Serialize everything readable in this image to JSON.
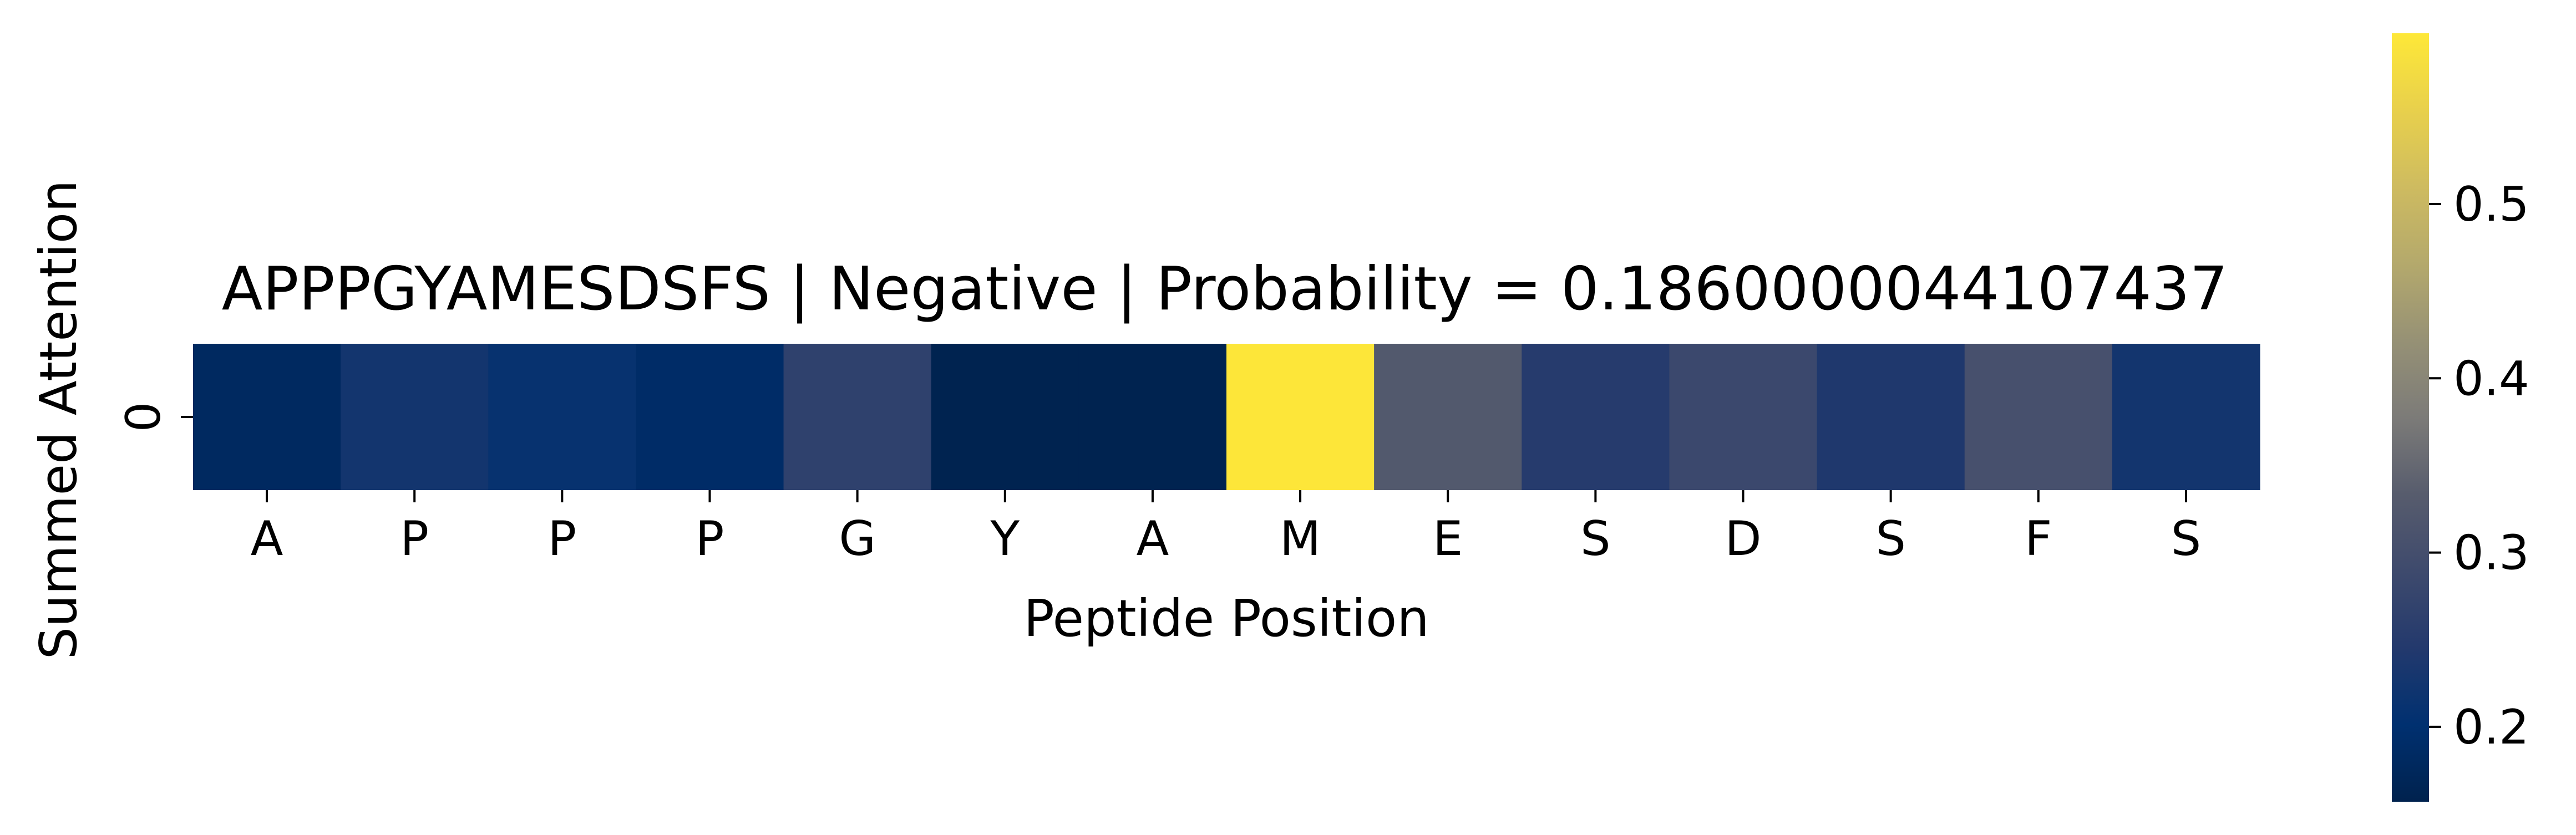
{
  "chart_data": {
    "type": "heatmap",
    "title": "APPPGYAMESDSFS | Negative | Probability = 0.1860000044107437",
    "xlabel": "Peptide Position",
    "ylabel": "Summed Attention",
    "x_categories": [
      "A",
      "P",
      "P",
      "P",
      "G",
      "Y",
      "A",
      "M",
      "E",
      "S",
      "D",
      "S",
      "F",
      "S"
    ],
    "y_categories": [
      "0"
    ],
    "values": [
      [
        0.18,
        0.225,
        0.21,
        0.19,
        0.265,
        0.16,
        0.16,
        0.595,
        0.325,
        0.25,
        0.285,
        0.24,
        0.305,
        0.225
      ]
    ],
    "colormap": "cividis",
    "colorbar": {
      "min": 0.157,
      "max": 0.598,
      "ticks": [
        0.2,
        0.3,
        0.4,
        0.5
      ],
      "tick_labels": [
        "0.2",
        "0.3",
        "0.4",
        "0.5"
      ],
      "position": "right"
    },
    "grid": false
  }
}
